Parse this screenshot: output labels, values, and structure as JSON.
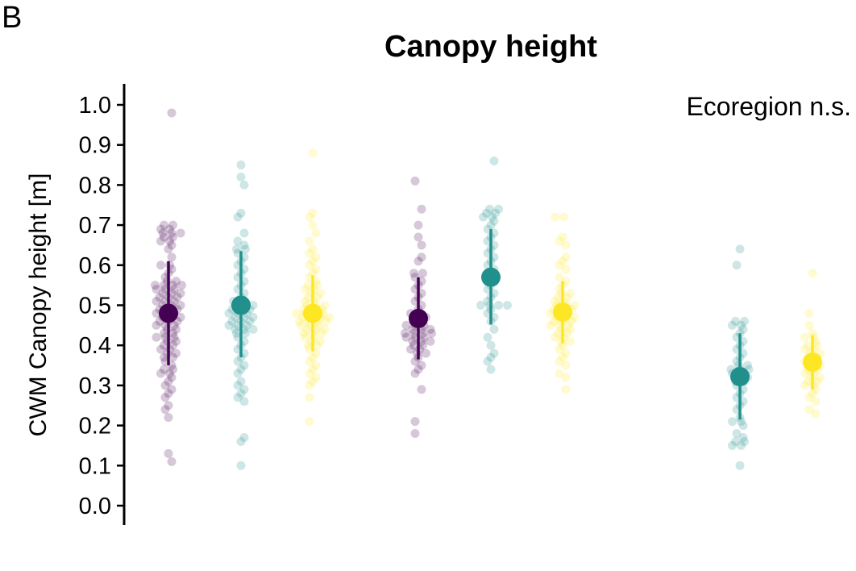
{
  "panel_label": "B",
  "chart_data": {
    "type": "scatter",
    "title": "Canopy height",
    "ylabel": "CWM Canopy height [m]",
    "annotation": "Ecoregion n.s.",
    "ylim": [
      0,
      1.0
    ],
    "y_ticks": [
      "0.0",
      "0.1",
      "0.2",
      "0.3",
      "0.4",
      "0.5",
      "0.6",
      "0.7",
      "0.8",
      "0.9",
      "1.0"
    ],
    "grid": false,
    "legend": "none",
    "series": [
      {
        "color": "#440154",
        "groups": [
          {
            "mean": 0.48,
            "lower": 0.35,
            "upper": 0.61,
            "points": [
              0.98,
              0.7,
              0.7,
              0.69,
              0.69,
              0.68,
              0.68,
              0.68,
              0.67,
              0.67,
              0.66,
              0.66,
              0.65,
              0.64,
              0.62,
              0.6,
              0.6,
              0.59,
              0.58,
              0.57,
              0.56,
              0.56,
              0.55,
              0.55,
              0.55,
              0.55,
              0.54,
              0.54,
              0.54,
              0.53,
              0.53,
              0.53,
              0.52,
              0.52,
              0.52,
              0.51,
              0.51,
              0.51,
              0.5,
              0.5,
              0.5,
              0.49,
              0.49,
              0.49,
              0.48,
              0.48,
              0.48,
              0.47,
              0.47,
              0.47,
              0.46,
              0.46,
              0.46,
              0.45,
              0.45,
              0.45,
              0.44,
              0.44,
              0.43,
              0.43,
              0.42,
              0.42,
              0.42,
              0.41,
              0.41,
              0.4,
              0.4,
              0.39,
              0.39,
              0.38,
              0.38,
              0.37,
              0.37,
              0.36,
              0.35,
              0.34,
              0.34,
              0.33,
              0.33,
              0.32,
              0.31,
              0.3,
              0.29,
              0.28,
              0.27,
              0.25,
              0.24,
              0.22,
              0.13,
              0.11
            ]
          },
          {
            "mean": 0.467,
            "lower": 0.365,
            "upper": 0.57,
            "points": [
              0.81,
              0.74,
              0.7,
              0.67,
              0.65,
              0.62,
              0.61,
              0.58,
              0.58,
              0.57,
              0.56,
              0.55,
              0.54,
              0.53,
              0.52,
              0.51,
              0.5,
              0.49,
              0.48,
              0.48,
              0.47,
              0.47,
              0.46,
              0.46,
              0.45,
              0.45,
              0.45,
              0.44,
              0.44,
              0.44,
              0.43,
              0.43,
              0.43,
              0.43,
              0.42,
              0.42,
              0.42,
              0.41,
              0.41,
              0.41,
              0.4,
              0.4,
              0.39,
              0.39,
              0.38,
              0.38,
              0.37,
              0.36,
              0.35,
              0.34,
              0.33,
              0.29,
              0.21,
              0.18
            ]
          }
        ]
      },
      {
        "color": "#21908C",
        "groups": [
          {
            "mean": 0.5,
            "lower": 0.37,
            "upper": 0.635,
            "points": [
              0.85,
              0.82,
              0.8,
              0.73,
              0.72,
              0.68,
              0.66,
              0.65,
              0.64,
              0.64,
              0.63,
              0.62,
              0.61,
              0.6,
              0.59,
              0.58,
              0.57,
              0.56,
              0.55,
              0.54,
              0.53,
              0.52,
              0.51,
              0.51,
              0.5,
              0.5,
              0.5,
              0.49,
              0.49,
              0.49,
              0.48,
              0.48,
              0.48,
              0.47,
              0.47,
              0.47,
              0.46,
              0.46,
              0.46,
              0.45,
              0.45,
              0.45,
              0.44,
              0.44,
              0.44,
              0.43,
              0.43,
              0.42,
              0.41,
              0.4,
              0.39,
              0.38,
              0.37,
              0.36,
              0.35,
              0.34,
              0.33,
              0.31,
              0.3,
              0.29,
              0.28,
              0.27,
              0.26,
              0.17,
              0.16,
              0.1
            ]
          },
          {
            "mean": 0.57,
            "lower": 0.452,
            "upper": 0.69,
            "points": [
              0.86,
              0.74,
              0.74,
              0.73,
              0.73,
              0.72,
              0.72,
              0.71,
              0.7,
              0.69,
              0.68,
              0.67,
              0.66,
              0.65,
              0.64,
              0.63,
              0.62,
              0.61,
              0.6,
              0.59,
              0.58,
              0.57,
              0.56,
              0.55,
              0.54,
              0.53,
              0.52,
              0.51,
              0.5,
              0.5,
              0.5,
              0.5,
              0.49,
              0.48,
              0.47,
              0.46,
              0.44,
              0.42,
              0.4,
              0.38,
              0.37,
              0.36,
              0.34
            ]
          },
          {
            "mean": 0.322,
            "lower": 0.215,
            "upper": 0.43,
            "points": [
              0.64,
              0.6,
              0.46,
              0.46,
              0.45,
              0.45,
              0.44,
              0.43,
              0.42,
              0.41,
              0.4,
              0.39,
              0.38,
              0.37,
              0.36,
              0.35,
              0.35,
              0.34,
              0.34,
              0.34,
              0.33,
              0.33,
              0.32,
              0.32,
              0.31,
              0.31,
              0.3,
              0.29,
              0.28,
              0.27,
              0.26,
              0.25,
              0.24,
              0.22,
              0.21,
              0.21,
              0.2,
              0.18,
              0.17,
              0.16,
              0.16,
              0.15,
              0.15,
              0.1
            ]
          }
        ]
      },
      {
        "color": "#FDE725",
        "groups": [
          {
            "mean": 0.48,
            "lower": 0.385,
            "upper": 0.575,
            "points": [
              0.88,
              0.73,
              0.72,
              0.7,
              0.68,
              0.66,
              0.64,
              0.63,
              0.62,
              0.61,
              0.6,
              0.59,
              0.58,
              0.57,
              0.56,
              0.55,
              0.55,
              0.54,
              0.54,
              0.53,
              0.53,
              0.52,
              0.52,
              0.51,
              0.51,
              0.5,
              0.5,
              0.5,
              0.49,
              0.49,
              0.49,
              0.48,
              0.48,
              0.48,
              0.48,
              0.47,
              0.47,
              0.47,
              0.47,
              0.46,
              0.46,
              0.46,
              0.46,
              0.45,
              0.45,
              0.45,
              0.44,
              0.44,
              0.44,
              0.43,
              0.43,
              0.43,
              0.42,
              0.42,
              0.41,
              0.41,
              0.4,
              0.4,
              0.39,
              0.38,
              0.37,
              0.36,
              0.35,
              0.34,
              0.33,
              0.32,
              0.31,
              0.3,
              0.27,
              0.21
            ]
          },
          {
            "mean": 0.483,
            "lower": 0.405,
            "upper": 0.56,
            "points": [
              0.72,
              0.72,
              0.67,
              0.66,
              0.65,
              0.62,
              0.61,
              0.6,
              0.59,
              0.57,
              0.56,
              0.55,
              0.54,
              0.53,
              0.53,
              0.52,
              0.52,
              0.51,
              0.51,
              0.5,
              0.5,
              0.5,
              0.49,
              0.49,
              0.49,
              0.48,
              0.48,
              0.48,
              0.47,
              0.47,
              0.47,
              0.46,
              0.46,
              0.46,
              0.45,
              0.45,
              0.45,
              0.44,
              0.44,
              0.43,
              0.43,
              0.42,
              0.42,
              0.41,
              0.41,
              0.4,
              0.39,
              0.38,
              0.37,
              0.36,
              0.35,
              0.33,
              0.32,
              0.29
            ]
          },
          {
            "mean": 0.358,
            "lower": 0.29,
            "upper": 0.425,
            "points": [
              0.58,
              0.48,
              0.45,
              0.43,
              0.42,
              0.42,
              0.41,
              0.4,
              0.4,
              0.39,
              0.39,
              0.38,
              0.38,
              0.37,
              0.37,
              0.36,
              0.36,
              0.35,
              0.35,
              0.34,
              0.34,
              0.33,
              0.33,
              0.32,
              0.32,
              0.31,
              0.31,
              0.3,
              0.3,
              0.29,
              0.28,
              0.27,
              0.26,
              0.24,
              0.23
            ]
          }
        ]
      }
    ]
  }
}
